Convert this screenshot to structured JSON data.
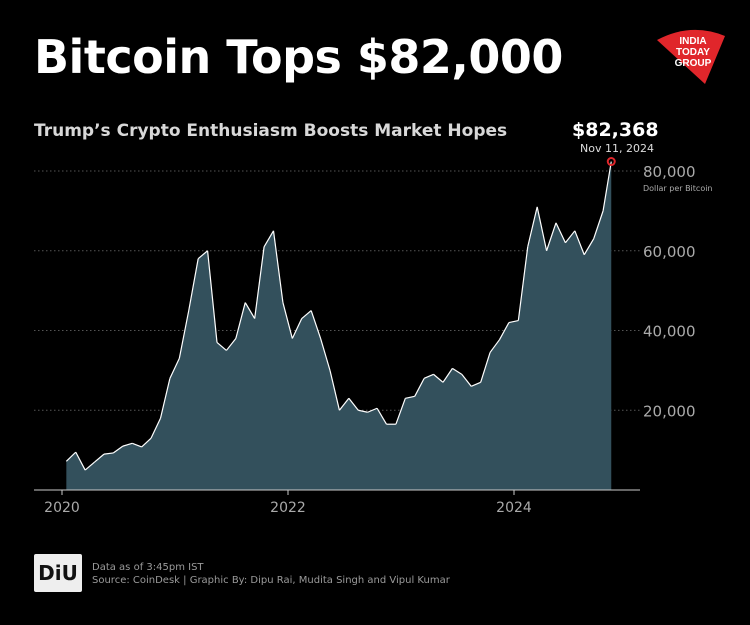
{
  "header": {
    "title": "Bitcoin Tops $82,000",
    "subtitle": "Trump’s Crypto Enthusiasm Boosts Market Hopes",
    "logo_text": "INDIA TODAY GROUP"
  },
  "callout": {
    "value": "$82,368",
    "date": "Nov 11, 2024"
  },
  "footer": {
    "logo_text": "DiU",
    "line1": "Data as of 3:45pm IST",
    "line2": "Source: CoinDesk | Graphic By: Dipu Rai, Mudita Singh and Vipul Kumar"
  },
  "colors": {
    "background": "#000000",
    "area": "#33505c",
    "line": "#ffffff",
    "marker": "#e0262b",
    "logo": "#e0262b"
  },
  "chart_data": {
    "type": "area",
    "title": "",
    "ylabel": "Dollar per Bitcoin",
    "xlabel": "",
    "ylim": [
      0,
      80000
    ],
    "yticks": [
      20000,
      40000,
      60000,
      80000
    ],
    "ytick_labels": [
      "20,000",
      "40,000",
      "60,000",
      "80,000"
    ],
    "xticks": [
      "2020",
      "2022",
      "2024"
    ],
    "grid": "horizontal dotted",
    "x": [
      "2020-01",
      "2020-02",
      "2020-03",
      "2020-04",
      "2020-05",
      "2020-06",
      "2020-07",
      "2020-08",
      "2020-09",
      "2020-10",
      "2020-11",
      "2020-12",
      "2021-01",
      "2021-02",
      "2021-03",
      "2021-04",
      "2021-05",
      "2021-06",
      "2021-07",
      "2021-08",
      "2021-09",
      "2021-10",
      "2021-11",
      "2021-12",
      "2022-01",
      "2022-02",
      "2022-03",
      "2022-04",
      "2022-05",
      "2022-06",
      "2022-07",
      "2022-08",
      "2022-09",
      "2022-10",
      "2022-11",
      "2022-12",
      "2023-01",
      "2023-02",
      "2023-03",
      "2023-04",
      "2023-05",
      "2023-06",
      "2023-07",
      "2023-08",
      "2023-09",
      "2023-10",
      "2023-11",
      "2023-12",
      "2024-01",
      "2024-02",
      "2024-03",
      "2024-04",
      "2024-05",
      "2024-06",
      "2024-07",
      "2024-08",
      "2024-09",
      "2024-10",
      "2024-11-11"
    ],
    "values": [
      7200,
      9500,
      5000,
      7000,
      9000,
      9300,
      11000,
      11700,
      10800,
      13000,
      18000,
      28000,
      33000,
      45000,
      58000,
      60000,
      37000,
      35000,
      38000,
      47000,
      43000,
      61000,
      65000,
      47000,
      38000,
      43000,
      45000,
      38000,
      30000,
      20000,
      23000,
      20000,
      19500,
      20500,
      16500,
      16500,
      23000,
      23500,
      28000,
      29000,
      27000,
      30500,
      29000,
      26000,
      27000,
      34500,
      37700,
      42000,
      42500,
      61000,
      71000,
      60000,
      67000,
      62000,
      65000,
      59000,
      63000,
      70000,
      82368
    ],
    "annotation": {
      "x": "2024-11-11",
      "value": 82368
    }
  }
}
